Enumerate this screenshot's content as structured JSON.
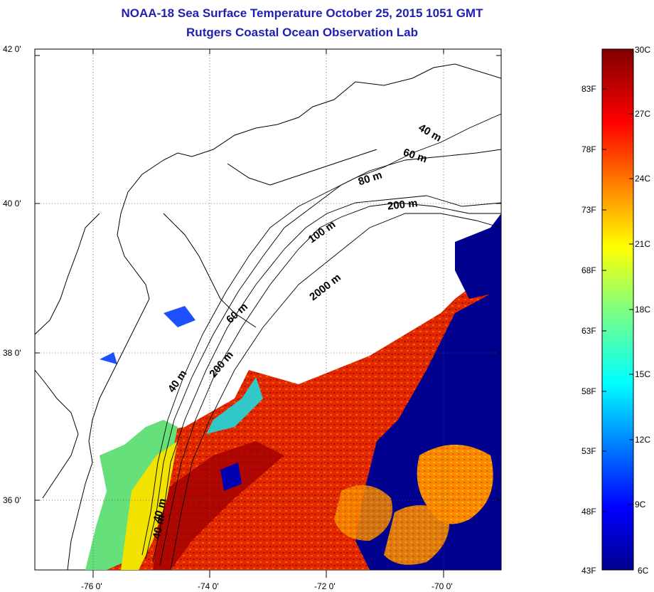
{
  "header": {
    "title": "NOAA-18 Sea Surface Temperature October 25, 2015 1051 GMT",
    "subtitle": "Rutgers Coastal Ocean Observation Lab"
  },
  "map": {
    "lat_ticks": [
      {
        "value": 42,
        "label": "42 0'"
      },
      {
        "value": 40,
        "label": "40 0'"
      },
      {
        "value": 38,
        "label": "38 0'"
      },
      {
        "value": 36,
        "label": "36 0'"
      }
    ],
    "lon_ticks": [
      {
        "value": -76,
        "label": "-76 0'"
      },
      {
        "value": -74,
        "label": "-74 0'"
      },
      {
        "value": -72,
        "label": "-72 0'"
      },
      {
        "value": -70,
        "label": "-70 0'"
      }
    ],
    "contour_labels": [
      {
        "text": "40 m",
        "id": "c40a"
      },
      {
        "text": "60 m",
        "id": "c60a"
      },
      {
        "text": "80 m",
        "id": "c80"
      },
      {
        "text": "200 m",
        "id": "c200a"
      },
      {
        "text": "100 m",
        "id": "c100"
      },
      {
        "text": "2000 m",
        "id": "c2000"
      },
      {
        "text": "60 m",
        "id": "c60b"
      },
      {
        "text": "200 m",
        "id": "c200b"
      },
      {
        "text": "40 m",
        "id": "c40b"
      },
      {
        "text": "40 m",
        "id": "c40c"
      },
      {
        "text": "40 m",
        "id": "c40d"
      }
    ],
    "colors": {
      "land_outline": "#000000",
      "cold": "#00008f",
      "warm": "#d42000"
    }
  },
  "colorbar": {
    "fahrenheit": [
      "83F",
      "78F",
      "73F",
      "68F",
      "63F",
      "58F",
      "53F",
      "48F",
      "43F"
    ],
    "celsius": [
      "30C",
      "27C",
      "24C",
      "21C",
      "18C",
      "15C",
      "12C",
      "9C",
      "6C"
    ],
    "range_c": [
      6,
      30
    ]
  }
}
